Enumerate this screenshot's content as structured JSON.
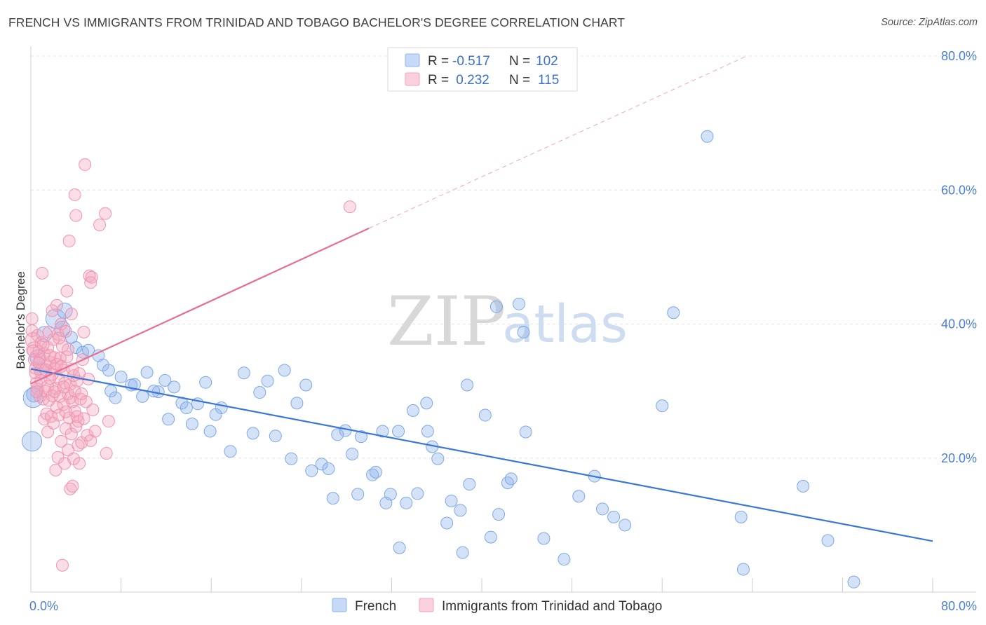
{
  "title": "FRENCH VS IMMIGRANTS FROM TRINIDAD AND TOBAGO BACHELOR'S DEGREE CORRELATION CHART",
  "source": "Source: ZipAtlas.com",
  "watermark": {
    "zip": "ZIP",
    "atlas": "atlas"
  },
  "legend": {
    "rows": [
      {
        "r_label": "R =",
        "r_value": "-0.517",
        "n_label": "N =",
        "n_value": "102",
        "color": "#8fb4ec"
      },
      {
        "r_label": "R =",
        "r_value": " 0.232",
        "n_label": "N =",
        "n_value": "115",
        "color": "#f2a5bd"
      }
    ]
  },
  "bottom_legend": [
    {
      "label": "French",
      "color": "#8fb4ec"
    },
    {
      "label": "Immigrants from Trinidad and Tobago",
      "color": "#f2a5bd"
    }
  ],
  "chart_data": {
    "type": "scatter",
    "title": "FRENCH VS IMMIGRANTS FROM TRINIDAD AND TOBAGO BACHELOR'S DEGREE CORRELATION CHART",
    "xlabel": "",
    "ylabel": "Bachelor's Degree",
    "xlim": [
      0,
      80
    ],
    "ylim": [
      0,
      80
    ],
    "x_tick_labels": [
      "0.0%",
      "80.0%"
    ],
    "y_tick_labels": [
      "20.0%",
      "40.0%",
      "60.0%",
      "80.0%"
    ],
    "y_ticks": [
      20,
      40,
      60,
      80
    ],
    "grid": true,
    "legend_position": "top-center",
    "series": [
      {
        "name": "French",
        "color": "#8fb4ec",
        "line_color": "#3a78d6",
        "trend": {
          "x": [
            0,
            80
          ],
          "y": [
            33.3,
            7.6
          ],
          "dashed_extension": false
        },
        "points": [
          [
            0.1,
            22.5,
            "L"
          ],
          [
            0.2,
            29.0,
            "L"
          ],
          [
            0.3,
            29.5,
            "M"
          ],
          [
            0.6,
            35.0,
            "M"
          ],
          [
            1.0,
            33.0,
            "M"
          ],
          [
            1.2,
            38.5,
            "M"
          ],
          [
            2.2,
            40.8,
            "L"
          ],
          [
            2.8,
            39.3,
            "M"
          ],
          [
            3.0,
            42.0,
            "M"
          ],
          [
            3.6,
            38.0,
            "S"
          ],
          [
            4.0,
            36.5,
            "S"
          ],
          [
            4.6,
            35.8,
            "S"
          ],
          [
            5.1,
            36.1,
            "S"
          ],
          [
            6.0,
            35.3,
            "S"
          ],
          [
            6.4,
            33.9,
            "S"
          ],
          [
            6.9,
            33.1,
            "S"
          ],
          [
            7.1,
            30.0,
            "S"
          ],
          [
            7.5,
            29.0,
            "S"
          ],
          [
            8.0,
            32.1,
            "S"
          ],
          [
            8.9,
            30.9,
            "S"
          ],
          [
            9.2,
            31.0,
            "S"
          ],
          [
            9.9,
            29.2,
            "S"
          ],
          [
            10.3,
            32.8,
            "S"
          ],
          [
            10.9,
            30.0,
            "S"
          ],
          [
            11.3,
            29.9,
            "S"
          ],
          [
            11.9,
            31.6,
            "S"
          ],
          [
            12.2,
            25.8,
            "S"
          ],
          [
            12.7,
            30.6,
            "S"
          ],
          [
            13.4,
            28.2,
            "S"
          ],
          [
            13.8,
            27.5,
            "S"
          ],
          [
            14.3,
            25.1,
            "S"
          ],
          [
            14.8,
            28.1,
            "S"
          ],
          [
            15.5,
            31.3,
            "S"
          ],
          [
            15.9,
            24.0,
            "S"
          ],
          [
            16.4,
            26.5,
            "S"
          ],
          [
            16.9,
            27.5,
            "S"
          ],
          [
            17.7,
            21.0,
            "S"
          ],
          [
            18.9,
            32.7,
            "S"
          ],
          [
            19.7,
            23.7,
            "S"
          ],
          [
            20.3,
            29.8,
            "S"
          ],
          [
            21.0,
            31.5,
            "S"
          ],
          [
            21.7,
            23.3,
            "S"
          ],
          [
            22.5,
            33.1,
            "S"
          ],
          [
            23.1,
            19.9,
            "S"
          ],
          [
            23.6,
            28.2,
            "S"
          ],
          [
            24.4,
            30.9,
            "S"
          ],
          [
            24.9,
            18.1,
            "S"
          ],
          [
            25.8,
            19.1,
            "S"
          ],
          [
            26.4,
            18.4,
            "S"
          ],
          [
            26.8,
            14.0,
            "S"
          ],
          [
            27.2,
            23.5,
            "S"
          ],
          [
            27.9,
            24.1,
            "S"
          ],
          [
            28.5,
            20.6,
            "S"
          ],
          [
            29.0,
            14.6,
            "S"
          ],
          [
            29.3,
            23.2,
            "S"
          ],
          [
            30.3,
            17.5,
            "S"
          ],
          [
            30.6,
            17.9,
            "S"
          ],
          [
            31.2,
            24.0,
            "S"
          ],
          [
            31.5,
            13.3,
            "S"
          ],
          [
            31.9,
            14.6,
            "S"
          ],
          [
            32.6,
            24.0,
            "S"
          ],
          [
            32.7,
            6.6,
            "S"
          ],
          [
            33.3,
            13.3,
            "S"
          ],
          [
            33.9,
            27.1,
            "S"
          ],
          [
            34.3,
            14.7,
            "S"
          ],
          [
            35.1,
            28.2,
            "S"
          ],
          [
            35.2,
            24.0,
            "S"
          ],
          [
            35.6,
            21.7,
            "S"
          ],
          [
            36.1,
            19.9,
            "S"
          ],
          [
            36.9,
            10.3,
            "S"
          ],
          [
            37.3,
            13.6,
            "S"
          ],
          [
            38.1,
            12.2,
            "S"
          ],
          [
            38.3,
            5.9,
            "S"
          ],
          [
            38.7,
            30.9,
            "S"
          ],
          [
            38.9,
            16.1,
            "S"
          ],
          [
            40.3,
            26.4,
            "S"
          ],
          [
            40.8,
            8.2,
            "S"
          ],
          [
            41.3,
            42.6,
            "S"
          ],
          [
            41.5,
            11.6,
            "S"
          ],
          [
            42.3,
            16.3,
            "S"
          ],
          [
            42.6,
            16.9,
            "S"
          ],
          [
            43.3,
            43.0,
            "S"
          ],
          [
            43.7,
            38.8,
            "S"
          ],
          [
            43.9,
            23.9,
            "S"
          ],
          [
            45.5,
            8.0,
            "S"
          ],
          [
            47.3,
            4.9,
            "S"
          ],
          [
            48.6,
            14.3,
            "S"
          ],
          [
            50.0,
            17.3,
            "S"
          ],
          [
            50.7,
            12.4,
            "S"
          ],
          [
            51.7,
            11.2,
            "S"
          ],
          [
            52.7,
            10.0,
            "S"
          ],
          [
            56.0,
            27.8,
            "S"
          ],
          [
            57.0,
            41.7,
            "S"
          ],
          [
            60.0,
            68.0,
            "S"
          ],
          [
            63.0,
            11.2,
            "S"
          ],
          [
            63.2,
            3.4,
            "S"
          ],
          [
            68.5,
            15.8,
            "S"
          ],
          [
            70.7,
            7.7,
            "S"
          ],
          [
            73.0,
            1.5,
            "S"
          ]
        ]
      },
      {
        "name": "Immigrants from Trinidad and Tobago",
        "color": "#f2a5bd",
        "line_color": "#e86d94",
        "trend": {
          "x": [
            0,
            30
          ],
          "y": [
            31.1,
            54.3
          ],
          "dashed_x": [
            30,
            63.5
          ],
          "dashed_y": [
            54.3,
            80
          ]
        },
        "points": [
          [
            0.1,
            40.8,
            "S"
          ],
          [
            0.1,
            39.0,
            "S"
          ],
          [
            0.2,
            37.6,
            "M"
          ],
          [
            0.3,
            36.2,
            "M"
          ],
          [
            0.3,
            34.7,
            "S"
          ],
          [
            0.4,
            33.4,
            "S"
          ],
          [
            0.5,
            31.2,
            "S"
          ],
          [
            0.6,
            30.3,
            "S"
          ],
          [
            0.6,
            38.3,
            "S"
          ],
          [
            0.7,
            35.9,
            "S"
          ],
          [
            0.8,
            29.2,
            "S"
          ],
          [
            0.8,
            34.8,
            "S"
          ],
          [
            0.9,
            37.2,
            "S"
          ],
          [
            1.0,
            47.6,
            "S"
          ],
          [
            1.0,
            33.0,
            "M"
          ],
          [
            1.1,
            28.8,
            "S"
          ],
          [
            1.2,
            35.6,
            "S"
          ],
          [
            1.2,
            25.8,
            "S"
          ],
          [
            1.3,
            30.0,
            "S"
          ],
          [
            1.4,
            33.9,
            "S"
          ],
          [
            1.4,
            26.6,
            "S"
          ],
          [
            1.5,
            36.5,
            "S"
          ],
          [
            1.5,
            23.9,
            "S"
          ],
          [
            1.6,
            38.8,
            "S"
          ],
          [
            1.6,
            28.6,
            "S"
          ],
          [
            1.7,
            31.9,
            "S"
          ],
          [
            1.7,
            34.3,
            "S"
          ],
          [
            1.8,
            26.2,
            "S"
          ],
          [
            1.9,
            42.0,
            "S"
          ],
          [
            1.9,
            29.3,
            "S"
          ],
          [
            2.0,
            37.7,
            "S"
          ],
          [
            2.0,
            25.2,
            "S"
          ],
          [
            2.1,
            33.4,
            "S"
          ],
          [
            2.1,
            35.0,
            "S"
          ],
          [
            2.2,
            18.2,
            "S"
          ],
          [
            2.2,
            30.4,
            "S"
          ],
          [
            2.3,
            27.6,
            "S"
          ],
          [
            2.3,
            42.8,
            "S"
          ],
          [
            2.4,
            20.1,
            "S"
          ],
          [
            2.4,
            38.5,
            "S"
          ],
          [
            2.5,
            31.8,
            "S"
          ],
          [
            2.5,
            26.4,
            "S"
          ],
          [
            2.6,
            34.9,
            "S"
          ],
          [
            2.6,
            29.2,
            "S"
          ],
          [
            2.7,
            22.5,
            "S"
          ],
          [
            2.7,
            40.0,
            "S"
          ],
          [
            2.8,
            36.7,
            "S"
          ],
          [
            2.8,
            4.0,
            "S"
          ],
          [
            2.9,
            33.1,
            "S"
          ],
          [
            2.9,
            28.0,
            "S"
          ],
          [
            3.0,
            19.2,
            "S"
          ],
          [
            3.0,
            31.2,
            "S"
          ],
          [
            3.1,
            38.9,
            "S"
          ],
          [
            3.1,
            24.4,
            "S"
          ],
          [
            3.2,
            44.9,
            "S"
          ],
          [
            3.2,
            35.1,
            "S"
          ],
          [
            3.3,
            21.2,
            "S"
          ],
          [
            3.3,
            29.6,
            "S"
          ],
          [
            3.4,
            52.4,
            "S"
          ],
          [
            3.4,
            26.0,
            "S"
          ],
          [
            3.5,
            15.4,
            "S"
          ],
          [
            3.5,
            31.0,
            "S"
          ],
          [
            3.6,
            41.5,
            "S"
          ],
          [
            3.6,
            23.6,
            "S"
          ],
          [
            3.7,
            28.4,
            "S"
          ],
          [
            3.7,
            15.8,
            "S"
          ],
          [
            3.8,
            32.3,
            "S"
          ],
          [
            3.8,
            19.9,
            "S"
          ],
          [
            3.9,
            27.0,
            "S"
          ],
          [
            3.9,
            59.3,
            "S"
          ],
          [
            4.0,
            56.2,
            "S"
          ],
          [
            4.0,
            24.7,
            "S"
          ],
          [
            4.1,
            31.5,
            "S"
          ],
          [
            4.2,
            21.9,
            "S"
          ],
          [
            4.2,
            25.5,
            "S"
          ],
          [
            4.3,
            19.2,
            "S"
          ],
          [
            4.4,
            28.8,
            "S"
          ],
          [
            4.5,
            22.3,
            "S"
          ],
          [
            4.6,
            34.7,
            "S"
          ],
          [
            4.7,
            38.8,
            "S"
          ],
          [
            4.8,
            63.8,
            "S"
          ],
          [
            5.0,
            23.4,
            "S"
          ],
          [
            5.2,
            47.2,
            "S"
          ],
          [
            5.3,
            46.2,
            "S"
          ],
          [
            5.4,
            47.0,
            "S"
          ],
          [
            6.1,
            54.8,
            "S"
          ],
          [
            6.6,
            56.5,
            "S"
          ],
          [
            6.7,
            20.7,
            "S"
          ],
          [
            6.9,
            25.5,
            "S"
          ],
          [
            28.3,
            57.5,
            "S"
          ],
          [
            0.2,
            36.0,
            "S"
          ],
          [
            0.4,
            32.7,
            "S"
          ],
          [
            0.5,
            29.9,
            "S"
          ],
          [
            0.7,
            34.2,
            "S"
          ],
          [
            0.9,
            31.6,
            "S"
          ],
          [
            1.1,
            36.9,
            "S"
          ],
          [
            1.3,
            33.2,
            "S"
          ],
          [
            1.5,
            30.7,
            "S"
          ],
          [
            1.7,
            35.3,
            "S"
          ],
          [
            1.9,
            32.5,
            "S"
          ],
          [
            2.1,
            29.9,
            "S"
          ],
          [
            2.3,
            34.0,
            "S"
          ],
          [
            2.5,
            37.9,
            "S"
          ],
          [
            2.7,
            33.7,
            "S"
          ],
          [
            2.9,
            30.6,
            "S"
          ],
          [
            3.1,
            26.9,
            "S"
          ],
          [
            3.3,
            36.2,
            "S"
          ],
          [
            3.5,
            29.0,
            "S"
          ],
          [
            3.7,
            33.3,
            "S"
          ],
          [
            3.9,
            30.0,
            "S"
          ],
          [
            4.1,
            26.2,
            "S"
          ],
          [
            4.3,
            32.6,
            "S"
          ],
          [
            4.5,
            29.6,
            "S"
          ],
          [
            4.7,
            25.9,
            "S"
          ],
          [
            4.9,
            28.4,
            "S"
          ],
          [
            5.1,
            31.8,
            "S"
          ],
          [
            5.3,
            22.6,
            "S"
          ],
          [
            5.5,
            27.2,
            "S"
          ],
          [
            5.7,
            24.0,
            "S"
          ]
        ]
      }
    ]
  }
}
